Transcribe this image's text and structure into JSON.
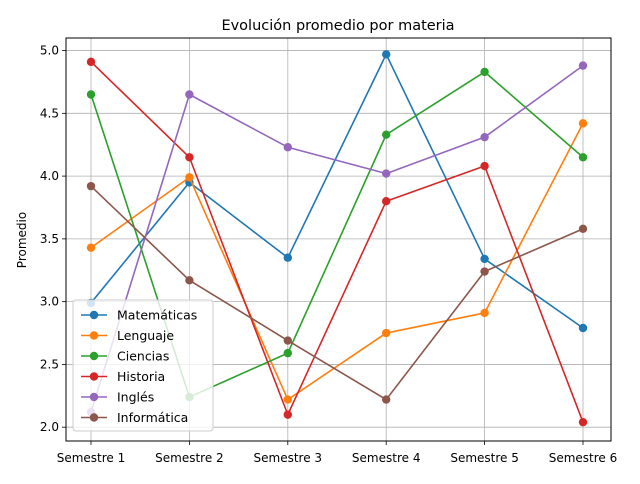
{
  "chart_data": {
    "type": "line",
    "title": "Evolución promedio por materia",
    "xlabel": "",
    "ylabel": "Promedio",
    "categories": [
      "Semestre 1",
      "Semestre 2",
      "Semestre 3",
      "Semestre 4",
      "Semestre 5",
      "Semestre 6"
    ],
    "ylim": [
      1.89,
      5.1
    ],
    "yticks": [
      2.0,
      2.5,
      3.0,
      3.5,
      4.0,
      4.5,
      5.0
    ],
    "ytick_labels": [
      "2.0",
      "2.5",
      "3.0",
      "3.5",
      "4.0",
      "4.5",
      "5.0"
    ],
    "grid": true,
    "legend_position": "lower-left",
    "series": [
      {
        "name": "Matemáticas",
        "color": "#1f77b4",
        "values": [
          2.99,
          3.95,
          3.35,
          4.97,
          3.34,
          2.79
        ]
      },
      {
        "name": "Lenguaje",
        "color": "#ff7f0e",
        "values": [
          3.43,
          3.99,
          2.22,
          2.75,
          2.91,
          4.42
        ]
      },
      {
        "name": "Ciencias",
        "color": "#2ca02c",
        "values": [
          4.65,
          2.24,
          2.59,
          4.33,
          4.83,
          4.15
        ]
      },
      {
        "name": "Historia",
        "color": "#d62728",
        "values": [
          4.91,
          4.15,
          2.1,
          3.8,
          4.08,
          2.04
        ]
      },
      {
        "name": "Inglés",
        "color": "#9467bd",
        "values": [
          2.12,
          4.65,
          4.23,
          4.02,
          4.31,
          4.88
        ]
      },
      {
        "name": "Informática",
        "color": "#8c564b",
        "values": [
          3.92,
          3.17,
          2.69,
          2.22,
          3.24,
          3.58
        ]
      }
    ]
  }
}
